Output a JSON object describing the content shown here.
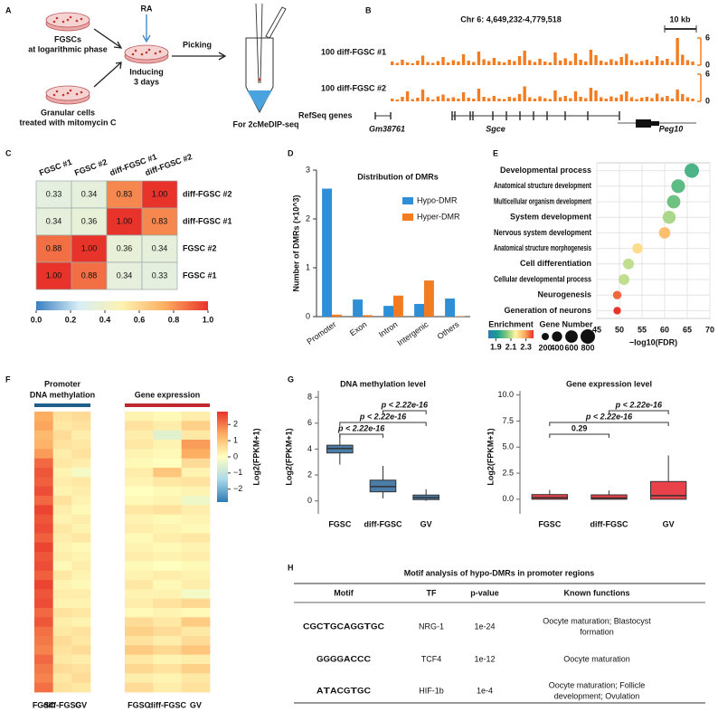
{
  "panel_labels": [
    "A",
    "B",
    "C",
    "D",
    "E",
    "F",
    "G",
    "H"
  ],
  "diagram": {
    "fgsc": [
      "FGSCs",
      "at logarithmic phase"
    ],
    "granular": [
      "Granular cells",
      "treated with mitomycin C"
    ],
    "ra": "RA",
    "inducing": [
      "Inducing",
      "3 days"
    ],
    "picking": "Picking",
    "output": "For 2cMeDIP-seq"
  },
  "chart_data": [
    {
      "type": "track",
      "title": "Chr 6: 4,649,232-4,779,518",
      "scale_label": "10 kb",
      "ylim": [
        0,
        6
      ],
      "yticks": [
        0,
        6
      ],
      "color": "#f47c20",
      "series": [
        {
          "name": "100 diff-FGSC #1",
          "values": [
            0.8,
            0.5,
            1.2,
            0.6,
            0.4,
            1.0,
            2.1,
            0.7,
            0.5,
            0.9,
            1.8,
            0.6,
            1.1,
            0.8,
            2.4,
            1.0,
            0.7,
            3.0,
            1.3,
            0.9,
            1.6,
            0.8,
            0.6,
            1.2,
            0.9,
            2.0,
            3.2,
            1.1,
            0.7,
            1.4,
            0.8,
            0.6,
            2.8,
            1.0,
            1.5,
            0.9,
            2.6,
            1.2,
            0.8,
            3.4,
            2.2,
            1.0,
            0.7,
            1.3,
            0.9,
            1.8,
            2.5,
            1.1,
            0.6,
            0.9,
            1.2,
            0.8,
            2.0,
            1.0,
            1.4,
            0.7,
            6.0,
            2.3,
            1.1,
            0.8
          ]
        },
        {
          "name": "100 diff-FGSC #2",
          "values": [
            0.6,
            0.4,
            1.0,
            2.2,
            0.5,
            0.8,
            2.6,
            0.9,
            0.4,
            1.1,
            1.5,
            0.7,
            0.9,
            0.6,
            2.0,
            0.8,
            0.6,
            2.8,
            1.0,
            0.7,
            1.2,
            0.6,
            0.5,
            1.0,
            0.8,
            1.6,
            3.3,
            0.9,
            0.6,
            1.1,
            0.7,
            0.5,
            2.4,
            0.9,
            1.2,
            0.7,
            2.2,
            1.0,
            0.7,
            3.0,
            2.4,
            0.9,
            0.6,
            1.1,
            0.8,
            1.5,
            2.2,
            0.9,
            0.5,
            0.8,
            1.0,
            0.7,
            1.7,
            0.9,
            1.2,
            0.6,
            2.6,
            1.6,
            0.9,
            0.6
          ]
        }
      ],
      "genes_label": "RefSeq genes",
      "genes": [
        "Gm38761",
        "Sgce",
        "Peg10"
      ]
    },
    {
      "type": "heatmap",
      "columns": [
        "FGSC #1",
        "FGSC #2",
        "diff-FGSC #1",
        "diff-FGSC #2"
      ],
      "rows": [
        "diff-FGSC #2",
        "diff-FGSC #1",
        "FGSC #2",
        "FGSC #1"
      ],
      "values": [
        [
          0.33,
          0.34,
          0.83,
          1
        ],
        [
          0.34,
          0.36,
          1,
          0.83
        ],
        [
          0.88,
          1,
          0.36,
          0.34
        ],
        [
          1,
          0.88,
          0.34,
          0.33
        ]
      ],
      "value_labels": [
        [
          "0.33",
          "0.34",
          "0.83",
          "1.00"
        ],
        [
          "0.34",
          "0.36",
          "1.00",
          "0.83"
        ],
        [
          "0.88",
          "1.00",
          "0.36",
          "0.34"
        ],
        [
          "1.00",
          "0.88",
          "0.34",
          "0.33"
        ]
      ],
      "colorscale": [
        "#3a7fc1",
        "#d8eef5",
        "#fdf2b0",
        "#fdae61",
        "#e8332a"
      ],
      "clim": [
        0,
        1
      ],
      "cticks": [
        {
          "value": 0,
          "label": "0.0"
        },
        0.2,
        0.4,
        0.6,
        0.8,
        {
          "value": 1,
          "label": "1.0"
        }
      ]
    },
    {
      "type": "bar",
      "title": "Distribution of DMRs",
      "ylabel": "Number of DMRs (×10^3)",
      "categories": [
        "Promoter",
        "Exon",
        "Intron",
        "Intergenic",
        "Others"
      ],
      "series": [
        {
          "name": "Hypo-DMR",
          "color": "#2e8fd6",
          "values": [
            2.62,
            0.35,
            0.22,
            0.26,
            0.37
          ]
        },
        {
          "name": "Hyper-DMR",
          "color": "#f47c20",
          "values": [
            0.04,
            0.03,
            0.43,
            0.74,
            0.01
          ]
        }
      ],
      "ylim": [
        0,
        3
      ],
      "yticks": [
        0,
        1,
        2,
        3
      ],
      "legend": "top-right"
    },
    {
      "type": "bubble",
      "categories": [
        "Developmental process",
        "Anatomical structure development",
        "Multicellular organism development",
        "System development",
        "Nervous system development",
        "Anatomical structure morphogenesis",
        "Cell differentiation",
        "Cellular developmental process",
        "Neurogenesis",
        "Generation of neurons"
      ],
      "x": [
        66,
        63,
        62,
        61,
        60,
        54,
        52,
        51,
        49.5,
        49.5
      ],
      "size": [
        800,
        720,
        680,
        640,
        500,
        400,
        450,
        450,
        280,
        220
      ],
      "color_values": [
        1.98,
        2.0,
        2.02,
        2.08,
        2.25,
        2.2,
        2.1,
        2.1,
        2.35,
        2.4
      ],
      "xlim": [
        45,
        70
      ],
      "xticks": [
        45,
        50,
        55,
        60,
        65,
        70
      ],
      "xlabel": "−log10(FDR)",
      "grid": true,
      "color_title": "Enrichment",
      "colorscale": [
        "#2c7bb6",
        "#1a9e8f",
        "#7fc97f",
        "#fff3a0",
        "#fdae61",
        "#e8332a"
      ],
      "clim": [
        1.8,
        2.4
      ],
      "cticks": [
        1.9,
        2.1,
        2.3
      ],
      "size_title": "Gene Number",
      "size_ticks": [
        200,
        400,
        600,
        800
      ]
    },
    {
      "type": "grouped_heatmap",
      "clabel": "Log2(FPKM+1)",
      "clim": [
        -2.8,
        2.8
      ],
      "colorscale": [
        "#2c7bb6",
        "#abd9e9",
        "#ffffbf",
        "#fdae61",
        "#e8332a"
      ],
      "cticks": [
        {
          "value": -2,
          "label": "−2"
        },
        {
          "value": -1,
          "label": "−1"
        },
        0,
        1,
        2
      ],
      "groups": [
        {
          "name_lines": [
            "Promoter",
            "DNA methylation"
          ],
          "color": "#1f5f8b",
          "columns": [
            "FGSC",
            "diff-FGSC",
            "GV"
          ],
          "values": [
            [
              1.4,
              0.5,
              0.6
            ],
            [
              1.5,
              0.4,
              0.5
            ],
            [
              1.2,
              0.6,
              0.3
            ],
            [
              1.3,
              0.5,
              0.4
            ],
            [
              1.6,
              0.3,
              0.5
            ],
            [
              2.2,
              0.4,
              0.3
            ],
            [
              2.4,
              0.2,
              -0.2
            ],
            [
              2.3,
              0.3,
              0.4
            ],
            [
              2.5,
              0.2,
              0.3
            ],
            [
              2.2,
              0.5,
              0.2
            ],
            [
              2.6,
              0.3,
              0.1
            ],
            [
              2.4,
              0.2,
              0.3
            ],
            [
              2.5,
              0.4,
              0.2
            ],
            [
              2.3,
              0.3,
              0.4
            ],
            [
              2.6,
              0.2,
              0.1
            ],
            [
              2.4,
              0.3,
              0.2
            ],
            [
              2.5,
              0.1,
              0.3
            ],
            [
              2.3,
              0.4,
              0.2
            ],
            [
              2.6,
              0.2,
              0.1
            ],
            [
              2.4,
              0.3,
              0.3
            ],
            [
              2.5,
              0.2,
              0.2
            ],
            [
              2.2,
              0.5,
              0.4
            ],
            [
              2.4,
              0.3,
              0.2
            ],
            [
              2.1,
              0.4,
              0.5
            ],
            [
              2.0,
              0.6,
              0.4
            ],
            [
              1.9,
              0.5,
              0.6
            ],
            [
              2.2,
              0.4,
              0.3
            ],
            [
              2.0,
              0.6,
              0.5
            ],
            [
              1.9,
              0.4,
              0.6
            ],
            [
              2.1,
              0.5,
              0.4
            ]
          ]
        },
        {
          "name_lines": [
            "Gene expression"
          ],
          "color": "#c0282f",
          "columns": [
            "FGSC",
            "diff-FGSC",
            "GV"
          ],
          "values": [
            [
              0.2,
              0.1,
              0.3
            ],
            [
              0.5,
              0.3,
              0.8
            ],
            [
              0.3,
              -0.5,
              0.4
            ],
            [
              0.4,
              0.2,
              1.6
            ],
            [
              0.2,
              0.1,
              1.4
            ],
            [
              0.1,
              0.0,
              0.6
            ],
            [
              0.3,
              1.0,
              0.2
            ],
            [
              0.2,
              0.4,
              0.5
            ],
            [
              0.0,
              0.1,
              0.2
            ],
            [
              0.1,
              0.2,
              -0.3
            ],
            [
              0.4,
              0.5,
              0.3
            ],
            [
              0.2,
              0.1,
              0.2
            ],
            [
              0.3,
              0.2,
              0.1
            ],
            [
              0.1,
              0.3,
              0.4
            ],
            [
              0.2,
              0.1,
              0.2
            ],
            [
              0.3,
              0.2,
              0.3
            ],
            [
              0.1,
              0.0,
              0.1
            ],
            [
              0.2,
              0.3,
              0.2
            ],
            [
              0.4,
              0.1,
              0.3
            ],
            [
              0.2,
              0.2,
              -0.2
            ],
            [
              0.3,
              0.5,
              0.7
            ],
            [
              0.1,
              0.2,
              0.1
            ],
            [
              0.6,
              0.4,
              0.9
            ],
            [
              0.8,
              0.6,
              0.4
            ],
            [
              0.5,
              0.3,
              0.6
            ],
            [
              0.9,
              0.7,
              1.0
            ],
            [
              0.4,
              0.2,
              0.3
            ],
            [
              0.7,
              0.5,
              0.8
            ],
            [
              0.3,
              0.2,
              0.4
            ],
            [
              0.6,
              0.3,
              0.5
            ]
          ]
        }
      ]
    },
    {
      "type": "box",
      "title": "DNA methylation level",
      "ylabel": "Log2(FPKM+1)",
      "categories": [
        "FGSC",
        "diff-FGSC",
        "GV"
      ],
      "color": "#4a7ea8",
      "boxes": [
        {
          "min": 2.8,
          "q1": 3.7,
          "median": 4.05,
          "q3": 4.3,
          "max": 5.2
        },
        {
          "min": 0.2,
          "q1": 0.7,
          "median": 1.1,
          "q3": 1.6,
          "max": 2.7
        },
        {
          "min": 0,
          "q1": 0.1,
          "median": 0.25,
          "q3": 0.45,
          "max": 0.9
        }
      ],
      "ylim": [
        -1,
        8.5
      ],
      "yticks": [
        0,
        2,
        4,
        6,
        8
      ],
      "comparisons": [
        {
          "groups": [
            "FGSC",
            "diff-FGSC"
          ],
          "label": "p < 2.22e-16"
        },
        {
          "groups": [
            "FGSC",
            "GV"
          ],
          "label": "p < 2.22e-16"
        },
        {
          "groups": [
            "diff-FGSC",
            "GV"
          ],
          "label": "p < 2.22e-16"
        }
      ]
    },
    {
      "type": "box",
      "title": "Gene expression level",
      "ylabel": "Log2(FPKM+1)",
      "categories": [
        "FGSC",
        "diff-FGSC",
        "GV"
      ],
      "color": "#e8414a",
      "boxes": [
        {
          "min": 0,
          "q1": 0,
          "median": 0.15,
          "q3": 0.45,
          "max": 0.9
        },
        {
          "min": 0,
          "q1": 0,
          "median": 0.12,
          "q3": 0.42,
          "max": 0.85
        },
        {
          "min": 0,
          "q1": 0,
          "median": 0.35,
          "q3": 1.7,
          "max": 4.2
        }
      ],
      "ylim": [
        -1.4,
        10.4
      ],
      "yticks": [
        {
          "value": 0,
          "label": "0.0"
        },
        2.5,
        {
          "value": 5,
          "label": "5.0"
        },
        7.5,
        {
          "value": 10,
          "label": "10.0"
        }
      ],
      "comparisons": [
        {
          "groups": [
            "FGSC",
            "diff-FGSC"
          ],
          "label": "0.29"
        },
        {
          "groups": [
            "FGSC",
            "GV"
          ],
          "label": "p < 2.22e-16"
        },
        {
          "groups": [
            "diff-FGSC",
            "GV"
          ],
          "label": "p < 2.22e-16"
        }
      ]
    }
  ],
  "table": {
    "title": "Motif analysis of hypo-DMRs in promoter regions",
    "headers": [
      "Motif",
      "TF",
      "p-value",
      "Known functions"
    ],
    "letter_colors": {
      "A": "#2ca02c",
      "C": "#1f4fc4",
      "G": "#f5a300",
      "T": "#d62728"
    },
    "rows": [
      {
        "motif": [
          "C",
          "G",
          "C",
          "T",
          "G",
          "C",
          "A",
          "G",
          "G",
          "T",
          "G",
          "C"
        ],
        "tf": "NRG-1",
        "p_value": "1e-24",
        "functions": [
          "Oocyte maturation; Blastocyst",
          "formation"
        ]
      },
      {
        "motif": [
          "G",
          "G",
          "G",
          "G",
          "A",
          "C",
          "C",
          "C"
        ],
        "tf": "TCF4",
        "p_value": "1e-12",
        "functions": [
          "Oocyte maturation"
        ]
      },
      {
        "motif": [
          "A",
          "T",
          "A",
          "C",
          "G",
          "T",
          "G",
          "C"
        ],
        "tf": "HIF-1b",
        "p_value": "1e-4",
        "functions": [
          "Oocyte maturation;  Follicle",
          "development; Ovulation"
        ]
      }
    ]
  }
}
